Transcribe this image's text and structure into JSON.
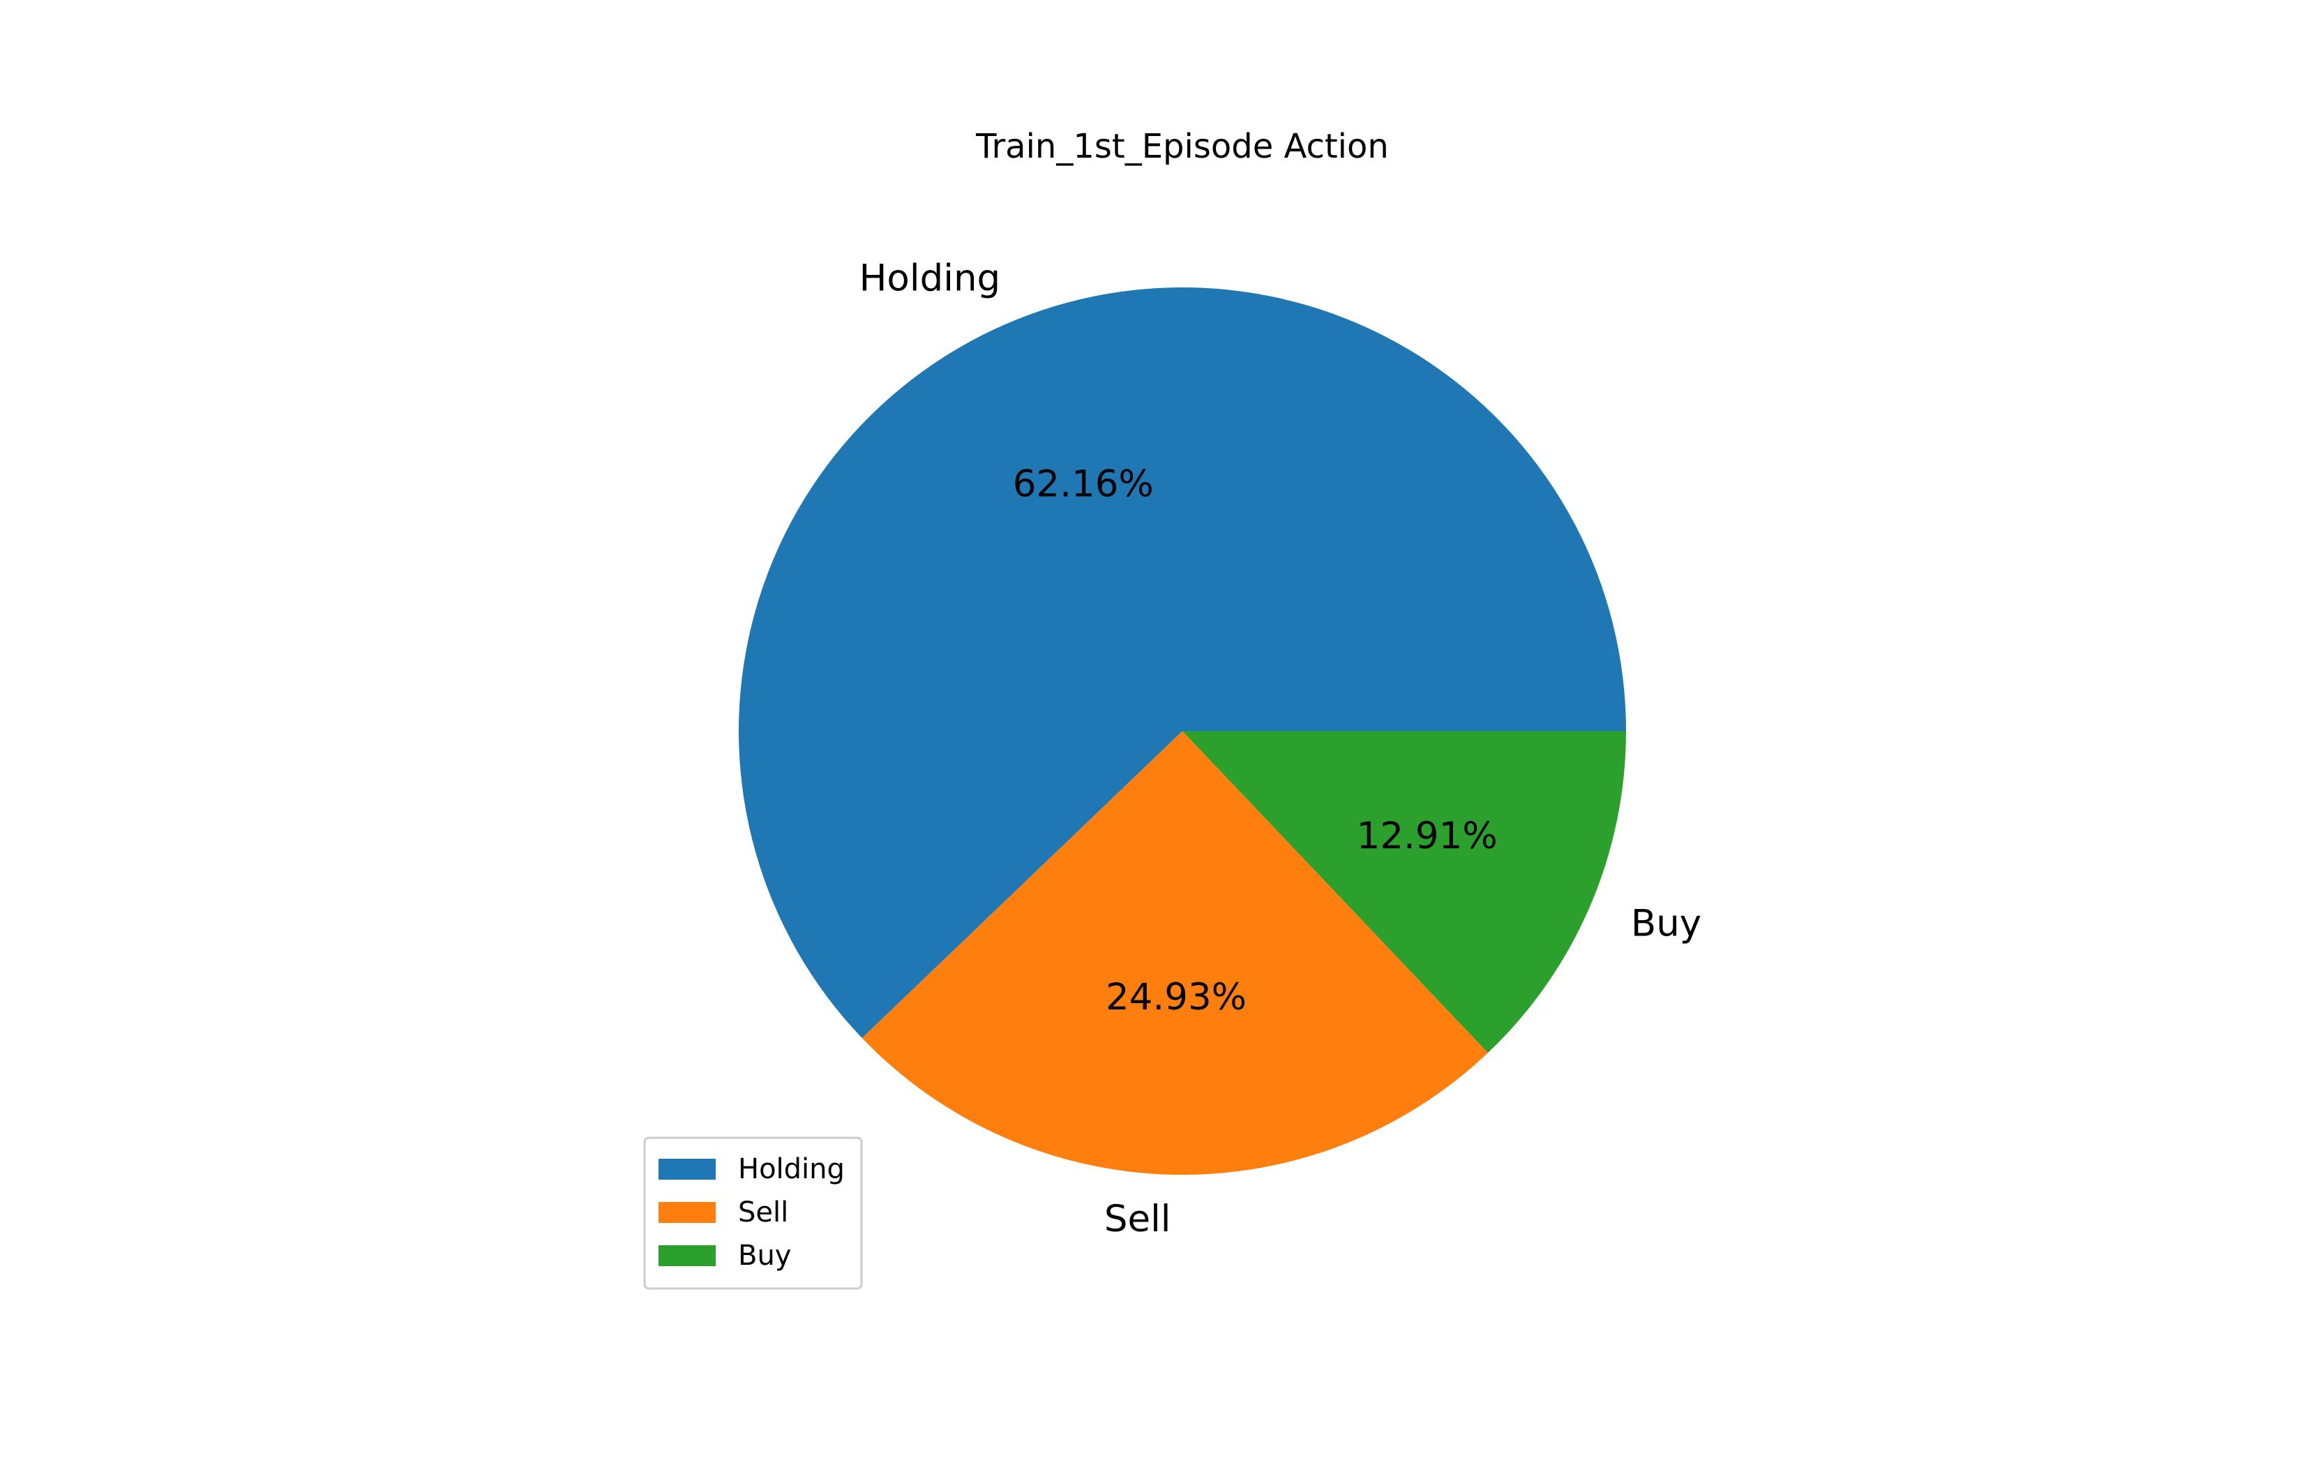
{
  "chart_data": {
    "type": "pie",
    "title": "Train_1st_Episode Action",
    "slices": [
      {
        "label": "Holding",
        "value": 62.16,
        "pct_label": "62.16%",
        "color": "#1f77b4"
      },
      {
        "label": "Sell",
        "value": 24.93,
        "pct_label": "24.93%",
        "color": "#ff7f0e"
      },
      {
        "label": "Buy",
        "value": 12.91,
        "pct_label": "12.91%",
        "color": "#2ca02c"
      }
    ],
    "start_angle_deg": 0,
    "direction": "counterclockwise",
    "legend": {
      "placement": "lower-left",
      "entries": [
        "Holding",
        "Sell",
        "Buy"
      ]
    }
  }
}
